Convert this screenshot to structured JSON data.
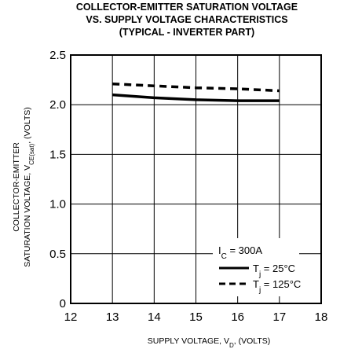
{
  "chart_data": {
    "type": "line",
    "title": [
      "COLLECTOR-EMITTER SATURATION VOLTAGE",
      "VS. SUPPLY VOLTAGE CHARACTERISTICS",
      "(TYPICAL - INVERTER PART)"
    ],
    "xlabel": "SUPPLY VOLTAGE, V",
    "xlabel_sub": "D",
    "xlabel_tail": ", (VOLTS)",
    "ylabel_line1": "COLLECTOR-EMITTER",
    "ylabel_line2": "SATURATION VOLTAGE, V",
    "ylabel_sub": "CE(sat)",
    "ylabel_tail": ", (VOLTS)",
    "xlim": [
      12,
      18
    ],
    "ylim": [
      0,
      2.5
    ],
    "xticks": [
      12,
      13,
      14,
      15,
      16,
      17,
      18
    ],
    "yticks": [
      0,
      0.5,
      1.0,
      1.5,
      2.0,
      2.5
    ],
    "ytick_labels": [
      "0",
      "0.5",
      "1.0",
      "1.5",
      "2.0",
      "2.5"
    ],
    "grid": true,
    "legend_header_main": "I",
    "legend_header_sub": "C",
    "legend_header_tail": " = 300A",
    "legend_position": "bottom-right",
    "series": [
      {
        "name_main": "T",
        "name_sub": "j",
        "name_tail": " = 25°C",
        "style": "solid",
        "x": [
          13,
          14,
          15,
          16,
          17
        ],
        "y": [
          2.1,
          2.07,
          2.05,
          2.04,
          2.04
        ]
      },
      {
        "name_main": "T",
        "name_sub": "j",
        "name_tail": " = 125°C",
        "style": "dashed",
        "x": [
          13,
          14,
          15,
          16,
          17
        ],
        "y": [
          2.21,
          2.19,
          2.17,
          2.16,
          2.14
        ]
      }
    ]
  }
}
